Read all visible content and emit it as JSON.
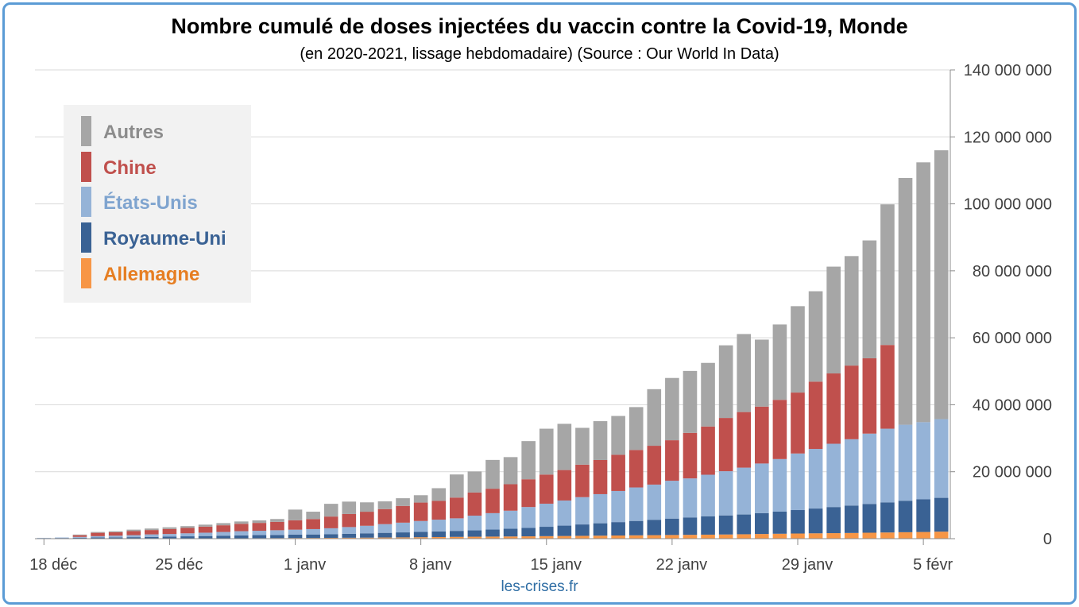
{
  "title": "Nombre cumulé de doses injectées du vaccin contre la Covid-19, Monde",
  "subtitle": "(en 2020-2021, lissage hebdomadaire) (Source : Our World In Data)",
  "source": "les-crises.fr",
  "colors": {
    "frame": "#5b9bd5",
    "Allemagne": "#f79646",
    "Royaume-Uni": "#3a6294",
    "États-Unis": "#95b3d7",
    "Chine": "#c0504d",
    "Autres": "#a6a6a6"
  },
  "legend": [
    {
      "label": "Autres",
      "color": "#a6a6a6",
      "text_color": "#8c8c8c"
    },
    {
      "label": "Chine",
      "color": "#c0504d",
      "text_color": "#c0504d"
    },
    {
      "label": "États-Unis",
      "color": "#95b3d7",
      "text_color": "#7fa4cf"
    },
    {
      "label": "Royaume-Uni",
      "color": "#3a6294",
      "text_color": "#3a6294"
    },
    {
      "label": "Allemagne",
      "color": "#f79646",
      "text_color": "#e67e22"
    }
  ],
  "chart_data": {
    "type": "bar",
    "stacked": true,
    "y_axis_position": "right",
    "ylim": [
      0,
      140000000
    ],
    "yticks": [
      0,
      20000000,
      40000000,
      60000000,
      80000000,
      100000000,
      120000000,
      140000000
    ],
    "ytick_labels": [
      "0",
      "20 000 000",
      "40 000 000",
      "60 000 000",
      "80 000 000",
      "100 000 000",
      "120 000 000",
      "140 000 000"
    ],
    "xtick_labels": [
      "18 déc",
      "25 déc",
      "1 janv",
      "8 janv",
      "15 janv",
      "22 janv",
      "29 janv",
      "5 févr"
    ],
    "xtick_indices": [
      0,
      7,
      14,
      21,
      28,
      35,
      42,
      49
    ],
    "grid": true,
    "legend_position": "top-left",
    "categories": [
      "18 déc",
      "19 déc",
      "20 déc",
      "21 déc",
      "22 déc",
      "23 déc",
      "24 déc",
      "25 déc",
      "26 déc",
      "27 déc",
      "28 déc",
      "29 déc",
      "30 déc",
      "31 déc",
      "1 janv",
      "2 janv",
      "3 janv",
      "4 janv",
      "5 janv",
      "6 janv",
      "7 janv",
      "8 janv",
      "9 janv",
      "10 janv",
      "11 janv",
      "12 janv",
      "13 janv",
      "14 janv",
      "15 janv",
      "16 janv",
      "17 janv",
      "18 janv",
      "19 janv",
      "20 janv",
      "21 janv",
      "22 janv",
      "23 janv",
      "24 janv",
      "25 janv",
      "26 janv",
      "27 janv",
      "28 janv",
      "29 janv",
      "30 janv",
      "31 janv",
      "1 févr",
      "2 févr",
      "3 févr",
      "4 févr",
      "5 févr",
      "6 févr"
    ],
    "series": [
      {
        "name": "Allemagne",
        "values": [
          0,
          0,
          0,
          0,
          0,
          0,
          0,
          0,
          20000,
          40000,
          80000,
          110000,
          140000,
          170000,
          190000,
          210000,
          240000,
          270000,
          300000,
          340000,
          380000,
          430000,
          480000,
          530000,
          580000,
          620000,
          660000,
          700000,
          750000,
          800000,
          850000,
          900000,
          950000,
          1000000,
          1050000,
          1100000,
          1150000,
          1200000,
          1250000,
          1320000,
          1400000,
          1470000,
          1540000,
          1600000,
          1650000,
          1700000,
          1780000,
          1850000,
          1930000,
          2000000,
          2100000
        ]
      },
      {
        "name": "Royaume-Uni",
        "values": [
          150000,
          200000,
          280000,
          350000,
          400000,
          450000,
          530000,
          600000,
          680000,
          750000,
          820000,
          880000,
          920000,
          950000,
          1000000,
          1050000,
          1120000,
          1200000,
          1300000,
          1400000,
          1500000,
          1600000,
          1700000,
          1800000,
          1900000,
          2100000,
          2300000,
          2500000,
          2800000,
          3100000,
          3400000,
          3700000,
          4000000,
          4300000,
          4600000,
          4900000,
          5200000,
          5500000,
          5700000,
          5900000,
          6200000,
          6600000,
          7000000,
          7400000,
          7800000,
          8200000,
          8600000,
          9000000,
          9400000,
          9800000,
          10100000
        ]
      },
      {
        "name": "États-Unis",
        "values": [
          100000,
          150000,
          250000,
          400000,
          500000,
          600000,
          750000,
          800000,
          900000,
          1000000,
          1100000,
          1250000,
          1300000,
          1400000,
          1500000,
          1600000,
          1750000,
          2000000,
          2250000,
          2600000,
          2900000,
          3250000,
          3500000,
          3750000,
          4400000,
          4900000,
          5400000,
          6250000,
          6900000,
          7500000,
          8150000,
          8700000,
          9300000,
          10000000,
          10500000,
          11300000,
          11650000,
          12400000,
          13200000,
          14000000,
          14850000,
          15700000,
          16900000,
          17800000,
          18900000,
          19800000,
          21000000,
          22000000,
          22700000,
          23000000,
          23500000
        ]
      },
      {
        "name": "Chine",
        "values": [
          0,
          0,
          500000,
          1000000,
          1000000,
          1200000,
          1300000,
          1500000,
          1600000,
          1800000,
          2000000,
          2200000,
          2350000,
          2500000,
          2800000,
          3000000,
          3500000,
          3900000,
          4200000,
          4500000,
          5000000,
          5500000,
          5600000,
          6200000,
          6900000,
          7300000,
          7900000,
          8300000,
          8700000,
          9100000,
          9700000,
          10200000,
          10800000,
          11200000,
          11600000,
          12100000,
          13600000,
          14400000,
          15900000,
          16600000,
          17000000,
          17700000,
          18200000,
          20100000,
          21000000,
          22000000,
          22500000,
          25000000,
          0,
          0,
          0
        ]
      },
      {
        "name": "Autres",
        "values": [
          0,
          0,
          200000,
          250000,
          300000,
          450000,
          450000,
          500000,
          550000,
          600000,
          650000,
          700000,
          750000,
          850000,
          3200000,
          2200000,
          3800000,
          3700000,
          2800000,
          2300000,
          2300000,
          2200000,
          3800000,
          6900000,
          6300000,
          8600000,
          8100000,
          11400000,
          13700000,
          13800000,
          11000000,
          11600000,
          11600000,
          12800000,
          16900000,
          18600000,
          18500000,
          19000000,
          21700000,
          23300000,
          20000000,
          22500000,
          25800000,
          27000000,
          31900000,
          32700000,
          35200000,
          42000000,
          73700000,
          77600000,
          80300000
        ]
      }
    ]
  }
}
